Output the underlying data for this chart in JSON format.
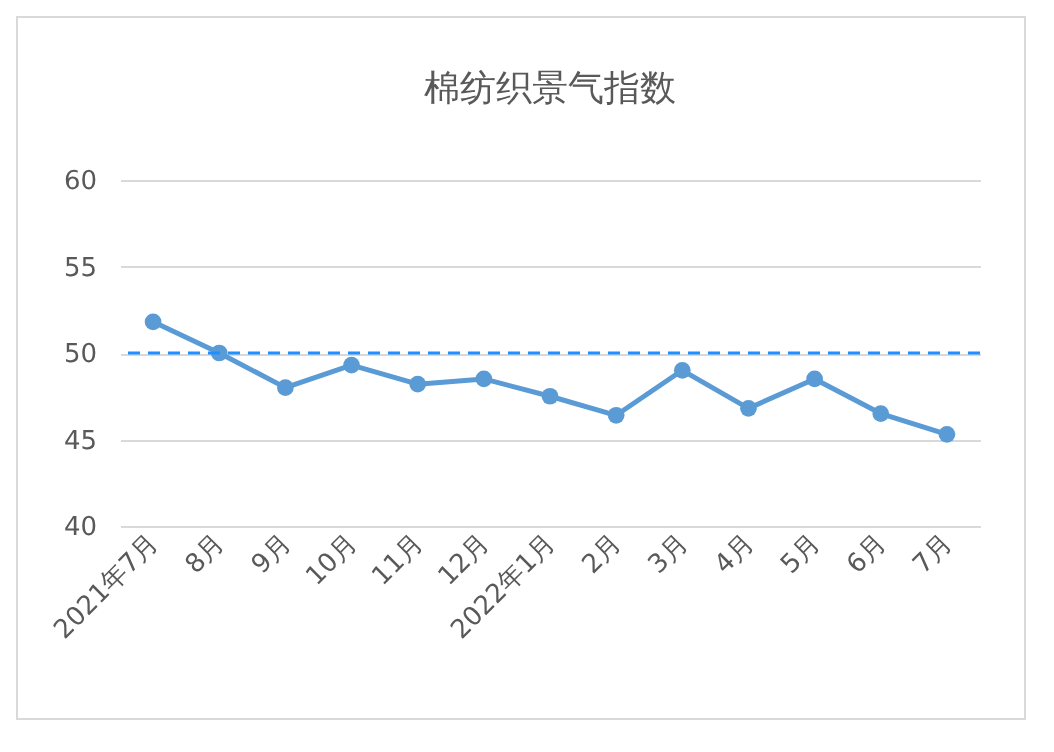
{
  "chart_data": {
    "type": "line",
    "title": "棉纺织景气指数",
    "categories": [
      "2021年7月",
      "8月",
      "9月",
      "10月",
      "11月",
      "12月",
      "2022年1月",
      "2月",
      "3月",
      "4月",
      "5月",
      "6月",
      "7月"
    ],
    "series": [
      {
        "color": "#5b9bd5",
        "values": [
          51.8,
          50.0,
          48.0,
          49.3,
          48.2,
          48.5,
          47.5,
          46.4,
          49.0,
          46.8,
          48.5,
          46.5,
          45.3
        ]
      }
    ],
    "ylim": [
      40,
      60
    ],
    "yticks": [
      40,
      45,
      50,
      55,
      60
    ],
    "grid": "y",
    "marker": "circle",
    "line_style": "solid",
    "ref_lines": [
      {
        "axis": "y",
        "value": 50,
        "color": "#1e90ff",
        "line_style": "dashed"
      }
    ]
  }
}
